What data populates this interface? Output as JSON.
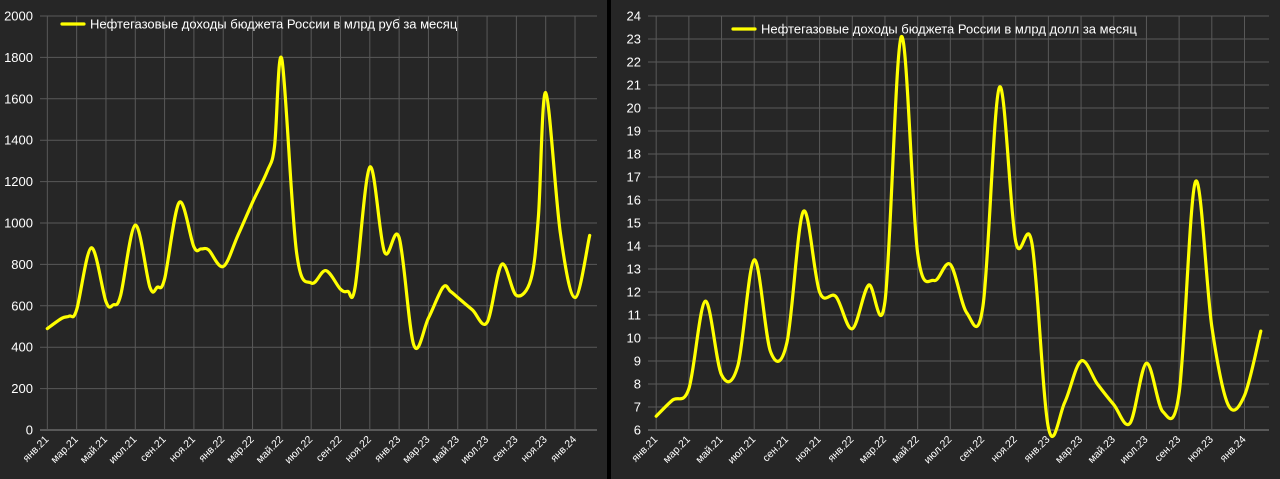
{
  "colors": {
    "background": "#262626",
    "grid": "#595959",
    "series": "#ffff00",
    "text": "#ffffff"
  },
  "chart_data": [
    {
      "type": "line",
      "legend_position": "top-left",
      "grid": true,
      "ylim": [
        0,
        2000
      ],
      "yticks": [
        "0",
        "200",
        "400",
        "600",
        "800",
        "1000",
        "1200",
        "1400",
        "1600",
        "1800",
        "2000"
      ],
      "categories": [
        "янв.21",
        "мар.21",
        "май.21",
        "июл.21",
        "сен.21",
        "ноя.21",
        "янв.22",
        "мар.22",
        "май.22",
        "июл.22",
        "сен.22",
        "ноя.22",
        "янв.23",
        "мар.23",
        "май.23",
        "июл.23",
        "сен.23",
        "ноя.23",
        "янв.24"
      ],
      "series": [
        {
          "name": "Нефтегазовые доходы бюджета России в млрд руб за месяц",
          "x": [
            0,
            1,
            1.5,
            2,
            3,
            4,
            4.5,
            5,
            6,
            7,
            7.5,
            8,
            9,
            10,
            10.5,
            11,
            12,
            13,
            14,
            15,
            15.5,
            16,
            17,
            18,
            19,
            20,
            20.5,
            21,
            22,
            23,
            24,
            25,
            26,
            27,
            27.5,
            28,
            29,
            30,
            31,
            32,
            33,
            33.5,
            34,
            35,
            36,
            37
          ],
          "values": [
            490,
            540,
            550,
            580,
            880,
            620,
            605,
            650,
            990,
            690,
            690,
            730,
            1100,
            885,
            875,
            870,
            790,
            940,
            1100,
            1250,
            1370,
            1790,
            860,
            710,
            770,
            680,
            670,
            690,
            1270,
            860,
            930,
            410,
            540,
            690,
            670,
            640,
            580,
            520,
            800,
            650,
            730,
            1030,
            1630,
            950,
            640,
            940
          ]
        }
      ]
    },
    {
      "type": "line",
      "legend_position": "top-left",
      "grid": true,
      "ylim": [
        6,
        24
      ],
      "yticks": [
        "6",
        "7",
        "8",
        "9",
        "10",
        "11",
        "12",
        "13",
        "14",
        "15",
        "16",
        "17",
        "18",
        "19",
        "20",
        "21",
        "22",
        "23",
        "24"
      ],
      "categories": [
        "янв.21",
        "мар.21",
        "май.21",
        "июл.21",
        "сен.21",
        "ноя.21",
        "янв.22",
        "мар.22",
        "май.22",
        "июл.22",
        "сен.22",
        "ноя.22",
        "янв.23",
        "мар.23",
        "май.23",
        "июл.23",
        "сен.23",
        "ноя.23",
        "янв.24"
      ],
      "series": [
        {
          "name": "Нефтегазовые доходы бюджета России в млрд долл за месяц",
          "x": [
            0,
            1,
            2,
            3,
            4,
            5,
            6,
            7,
            8,
            9,
            10,
            11,
            12,
            13,
            14,
            15,
            16,
            17,
            18,
            19,
            20,
            21,
            22,
            23,
            24,
            25,
            26,
            27,
            28,
            29,
            30,
            31,
            32,
            33,
            34,
            35,
            36,
            37
          ],
          "values": [
            6.6,
            7.3,
            7.8,
            11.6,
            8.4,
            8.8,
            13.4,
            9.4,
            9.8,
            15.5,
            12.0,
            11.8,
            10.4,
            12.3,
            11.6,
            23.1,
            13.7,
            12.5,
            13.2,
            11.1,
            11.4,
            20.9,
            14.2,
            14.1,
            6.1,
            7.2,
            9.0,
            8.0,
            7.1,
            6.3,
            8.9,
            6.8,
            7.6,
            16.8,
            10.5,
            7.1,
            7.5,
            10.3
          ]
        }
      ]
    }
  ]
}
